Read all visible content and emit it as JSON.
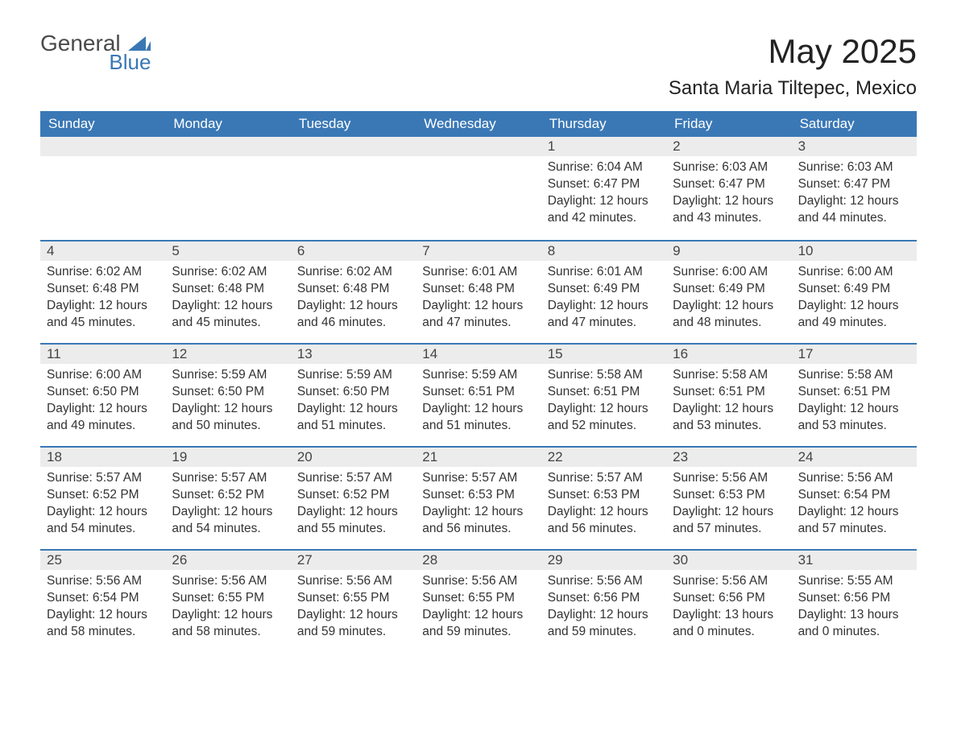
{
  "logo": {
    "general": "General",
    "blue": "Blue"
  },
  "title": "May 2025",
  "location": "Santa Maria Tiltepec, Mexico",
  "colors": {
    "header_bg": "#3a78b5",
    "header_text": "#ffffff",
    "daynum_bg": "#ececec",
    "text": "#333333",
    "border": "#3a78b5",
    "page_bg": "#ffffff"
  },
  "day_names": [
    "Sunday",
    "Monday",
    "Tuesday",
    "Wednesday",
    "Thursday",
    "Friday",
    "Saturday"
  ],
  "weeks": [
    [
      {
        "day": "",
        "sunrise": "",
        "sunset": "",
        "daylight": ""
      },
      {
        "day": "",
        "sunrise": "",
        "sunset": "",
        "daylight": ""
      },
      {
        "day": "",
        "sunrise": "",
        "sunset": "",
        "daylight": ""
      },
      {
        "day": "",
        "sunrise": "",
        "sunset": "",
        "daylight": ""
      },
      {
        "day": "1",
        "sunrise": "Sunrise: 6:04 AM",
        "sunset": "Sunset: 6:47 PM",
        "daylight": "Daylight: 12 hours and 42 minutes."
      },
      {
        "day": "2",
        "sunrise": "Sunrise: 6:03 AM",
        "sunset": "Sunset: 6:47 PM",
        "daylight": "Daylight: 12 hours and 43 minutes."
      },
      {
        "day": "3",
        "sunrise": "Sunrise: 6:03 AM",
        "sunset": "Sunset: 6:47 PM",
        "daylight": "Daylight: 12 hours and 44 minutes."
      }
    ],
    [
      {
        "day": "4",
        "sunrise": "Sunrise: 6:02 AM",
        "sunset": "Sunset: 6:48 PM",
        "daylight": "Daylight: 12 hours and 45 minutes."
      },
      {
        "day": "5",
        "sunrise": "Sunrise: 6:02 AM",
        "sunset": "Sunset: 6:48 PM",
        "daylight": "Daylight: 12 hours and 45 minutes."
      },
      {
        "day": "6",
        "sunrise": "Sunrise: 6:02 AM",
        "sunset": "Sunset: 6:48 PM",
        "daylight": "Daylight: 12 hours and 46 minutes."
      },
      {
        "day": "7",
        "sunrise": "Sunrise: 6:01 AM",
        "sunset": "Sunset: 6:48 PM",
        "daylight": "Daylight: 12 hours and 47 minutes."
      },
      {
        "day": "8",
        "sunrise": "Sunrise: 6:01 AM",
        "sunset": "Sunset: 6:49 PM",
        "daylight": "Daylight: 12 hours and 47 minutes."
      },
      {
        "day": "9",
        "sunrise": "Sunrise: 6:00 AM",
        "sunset": "Sunset: 6:49 PM",
        "daylight": "Daylight: 12 hours and 48 minutes."
      },
      {
        "day": "10",
        "sunrise": "Sunrise: 6:00 AM",
        "sunset": "Sunset: 6:49 PM",
        "daylight": "Daylight: 12 hours and 49 minutes."
      }
    ],
    [
      {
        "day": "11",
        "sunrise": "Sunrise: 6:00 AM",
        "sunset": "Sunset: 6:50 PM",
        "daylight": "Daylight: 12 hours and 49 minutes."
      },
      {
        "day": "12",
        "sunrise": "Sunrise: 5:59 AM",
        "sunset": "Sunset: 6:50 PM",
        "daylight": "Daylight: 12 hours and 50 minutes."
      },
      {
        "day": "13",
        "sunrise": "Sunrise: 5:59 AM",
        "sunset": "Sunset: 6:50 PM",
        "daylight": "Daylight: 12 hours and 51 minutes."
      },
      {
        "day": "14",
        "sunrise": "Sunrise: 5:59 AM",
        "sunset": "Sunset: 6:51 PM",
        "daylight": "Daylight: 12 hours and 51 minutes."
      },
      {
        "day": "15",
        "sunrise": "Sunrise: 5:58 AM",
        "sunset": "Sunset: 6:51 PM",
        "daylight": "Daylight: 12 hours and 52 minutes."
      },
      {
        "day": "16",
        "sunrise": "Sunrise: 5:58 AM",
        "sunset": "Sunset: 6:51 PM",
        "daylight": "Daylight: 12 hours and 53 minutes."
      },
      {
        "day": "17",
        "sunrise": "Sunrise: 5:58 AM",
        "sunset": "Sunset: 6:51 PM",
        "daylight": "Daylight: 12 hours and 53 minutes."
      }
    ],
    [
      {
        "day": "18",
        "sunrise": "Sunrise: 5:57 AM",
        "sunset": "Sunset: 6:52 PM",
        "daylight": "Daylight: 12 hours and 54 minutes."
      },
      {
        "day": "19",
        "sunrise": "Sunrise: 5:57 AM",
        "sunset": "Sunset: 6:52 PM",
        "daylight": "Daylight: 12 hours and 54 minutes."
      },
      {
        "day": "20",
        "sunrise": "Sunrise: 5:57 AM",
        "sunset": "Sunset: 6:52 PM",
        "daylight": "Daylight: 12 hours and 55 minutes."
      },
      {
        "day": "21",
        "sunrise": "Sunrise: 5:57 AM",
        "sunset": "Sunset: 6:53 PM",
        "daylight": "Daylight: 12 hours and 56 minutes."
      },
      {
        "day": "22",
        "sunrise": "Sunrise: 5:57 AM",
        "sunset": "Sunset: 6:53 PM",
        "daylight": "Daylight: 12 hours and 56 minutes."
      },
      {
        "day": "23",
        "sunrise": "Sunrise: 5:56 AM",
        "sunset": "Sunset: 6:53 PM",
        "daylight": "Daylight: 12 hours and 57 minutes."
      },
      {
        "day": "24",
        "sunrise": "Sunrise: 5:56 AM",
        "sunset": "Sunset: 6:54 PM",
        "daylight": "Daylight: 12 hours and 57 minutes."
      }
    ],
    [
      {
        "day": "25",
        "sunrise": "Sunrise: 5:56 AM",
        "sunset": "Sunset: 6:54 PM",
        "daylight": "Daylight: 12 hours and 58 minutes."
      },
      {
        "day": "26",
        "sunrise": "Sunrise: 5:56 AM",
        "sunset": "Sunset: 6:55 PM",
        "daylight": "Daylight: 12 hours and 58 minutes."
      },
      {
        "day": "27",
        "sunrise": "Sunrise: 5:56 AM",
        "sunset": "Sunset: 6:55 PM",
        "daylight": "Daylight: 12 hours and 59 minutes."
      },
      {
        "day": "28",
        "sunrise": "Sunrise: 5:56 AM",
        "sunset": "Sunset: 6:55 PM",
        "daylight": "Daylight: 12 hours and 59 minutes."
      },
      {
        "day": "29",
        "sunrise": "Sunrise: 5:56 AM",
        "sunset": "Sunset: 6:56 PM",
        "daylight": "Daylight: 12 hours and 59 minutes."
      },
      {
        "day": "30",
        "sunrise": "Sunrise: 5:56 AM",
        "sunset": "Sunset: 6:56 PM",
        "daylight": "Daylight: 13 hours and 0 minutes."
      },
      {
        "day": "31",
        "sunrise": "Sunrise: 5:55 AM",
        "sunset": "Sunset: 6:56 PM",
        "daylight": "Daylight: 13 hours and 0 minutes."
      }
    ]
  ]
}
